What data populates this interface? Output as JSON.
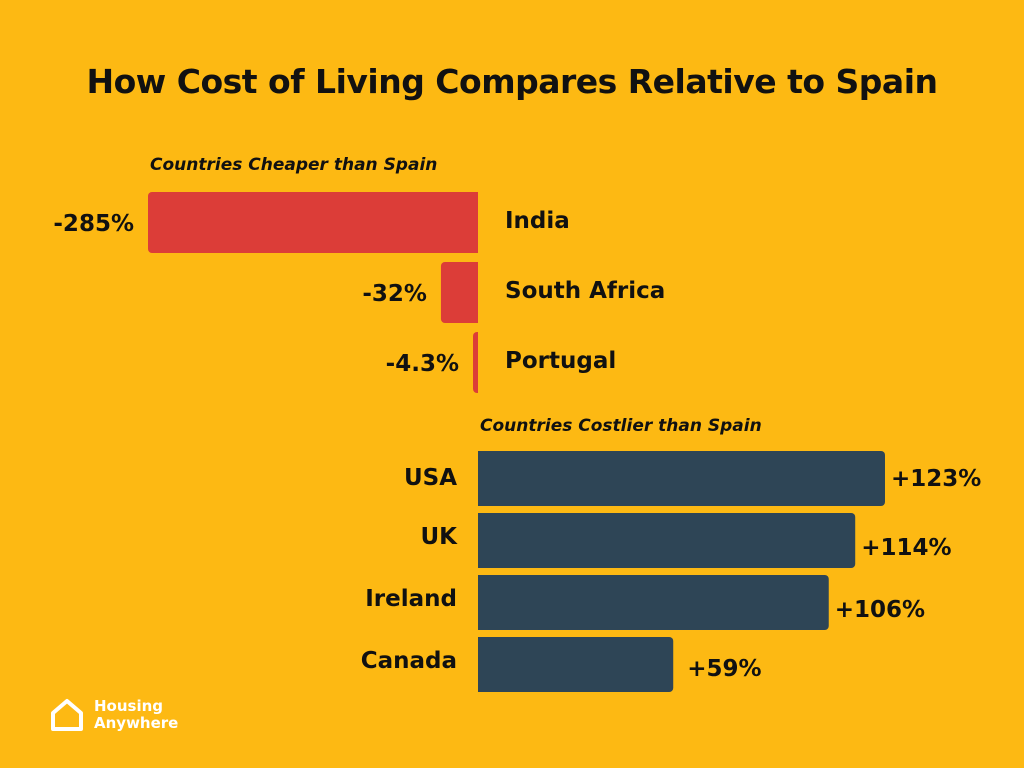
{
  "chart_data": {
    "type": "bar",
    "orientation": "horizontal-diverging",
    "title": "How Cost of Living Compares Relative to Spain",
    "groups": [
      {
        "name": "Countries Cheaper than Spain",
        "color": "#DC3D38",
        "categories": [
          "India",
          "South Africa",
          "Portugal"
        ],
        "values": [
          -285,
          -32,
          -4.3
        ],
        "labels": [
          "-285%",
          "-32%",
          "-4.3%"
        ]
      },
      {
        "name": "Countries Costlier than Spain",
        "color": "#2E4556",
        "categories": [
          "USA",
          "UK",
          "Ireland",
          "Canada"
        ],
        "values": [
          123,
          114,
          106,
          59
        ],
        "labels": [
          "+123%",
          "+114%",
          "+106%",
          "+59%"
        ]
      }
    ],
    "unit": "%"
  },
  "brand": {
    "line1": "Housing",
    "line2": "Anywhere"
  },
  "colors": {
    "background": "#FDB913",
    "negative": "#DC3D38",
    "positive": "#2E4556"
  }
}
